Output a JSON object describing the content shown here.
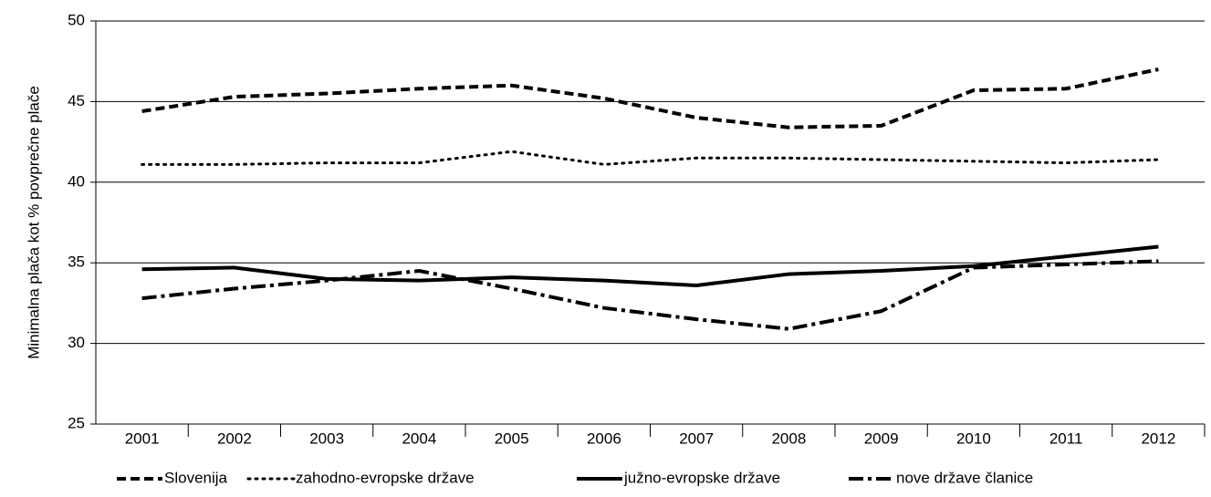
{
  "chart_data": {
    "type": "line",
    "y_label": "Minimalna plača kot % povprečne plače",
    "categories": [
      "2001",
      "2002",
      "2003",
      "2004",
      "2005",
      "2006",
      "2007",
      "2008",
      "2009",
      "2010",
      "2011",
      "2012"
    ],
    "series": [
      {
        "name": "Slovenija",
        "color": "#000000",
        "dash": "10,5",
        "width": 4,
        "values": [
          44.4,
          45.3,
          45.5,
          45.8,
          46.0,
          45.2,
          44.0,
          43.4,
          43.5,
          45.7,
          45.8,
          47.0
        ]
      },
      {
        "name": "zahodno-evropske države",
        "color": "#000000",
        "dash": "2,6",
        "width": 3,
        "values": [
          41.1,
          41.1,
          41.2,
          41.2,
          41.9,
          41.1,
          41.5,
          41.5,
          41.4,
          41.3,
          41.2,
          41.4
        ]
      },
      {
        "name": "južno-evropske države",
        "color": "#000000",
        "dash": "none",
        "width": 4,
        "values": [
          34.6,
          34.7,
          34.0,
          33.9,
          34.1,
          33.9,
          33.6,
          34.3,
          34.5,
          34.8,
          35.4,
          36.0
        ]
      },
      {
        "name": "nove države članice",
        "color": "#000000",
        "dash": "16,5,4,5",
        "width": 4,
        "values": [
          32.8,
          33.4,
          33.9,
          34.5,
          33.4,
          32.2,
          31.5,
          30.9,
          32.0,
          34.7,
          34.9,
          35.1
        ]
      }
    ],
    "ylim": [
      25,
      50
    ],
    "yticks": [
      25,
      30,
      35,
      40,
      45,
      50
    ],
    "grid": true
  }
}
